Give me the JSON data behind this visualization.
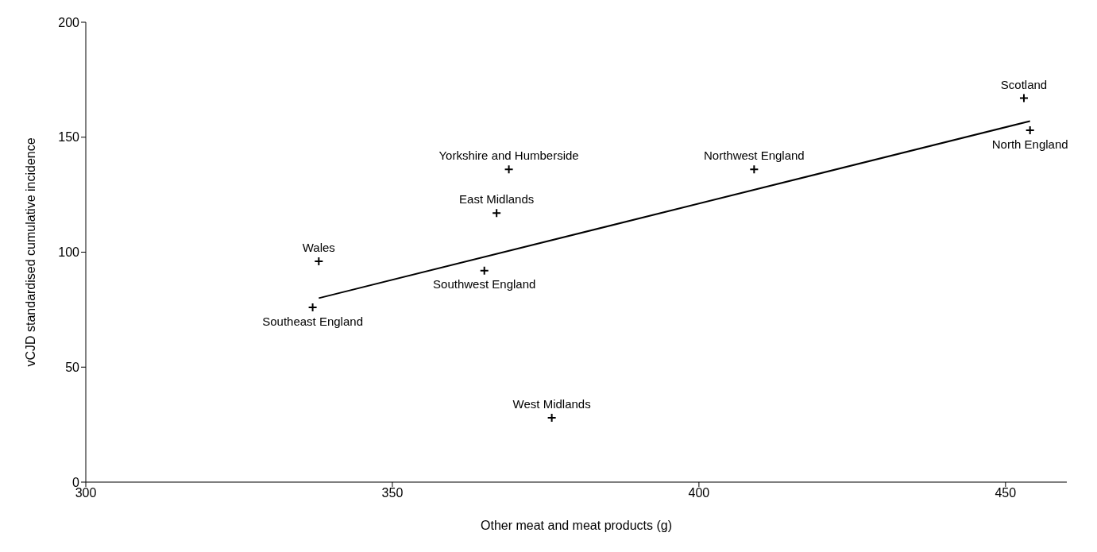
{
  "chart_data": {
    "type": "scatter",
    "xlabel": "Other meat and meat products (g)",
    "ylabel": "vCJD standardised cumulative incidence",
    "xlim": [
      300,
      460
    ],
    "xticks": [
      300,
      350,
      400,
      450
    ],
    "ylim": [
      0,
      200
    ],
    "yticks": [
      0,
      50,
      100,
      150,
      200
    ],
    "grid": false,
    "legend": false,
    "marker": "cross",
    "series": [
      {
        "color": "#000000",
        "x": [
          453,
          454,
          409,
          369,
          367,
          338,
          365,
          337,
          376
        ],
        "values": [
          167,
          153,
          136,
          136,
          117,
          96,
          92,
          76,
          28
        ]
      },
      {
        "type": "line",
        "marker": "none",
        "color": "#000000",
        "x": [
          338,
          454
        ],
        "values": [
          80,
          157
        ]
      }
    ],
    "annotations": [
      {
        "text": "Scotland",
        "x": 453,
        "y": 167
      },
      {
        "text": "North England",
        "x": 454,
        "y": 153
      },
      {
        "text": "Northwest England",
        "x": 409,
        "y": 136
      },
      {
        "text": "Yorkshire and Humberside",
        "x": 369,
        "y": 136
      },
      {
        "text": "East Midlands",
        "x": 367,
        "y": 117
      },
      {
        "text": "Wales",
        "x": 338,
        "y": 96
      },
      {
        "text": "Southwest England",
        "x": 365,
        "y": 92
      },
      {
        "text": "Southeast England",
        "x": 337,
        "y": 76
      },
      {
        "text": "West Midlands",
        "x": 376,
        "y": 28
      }
    ]
  }
}
